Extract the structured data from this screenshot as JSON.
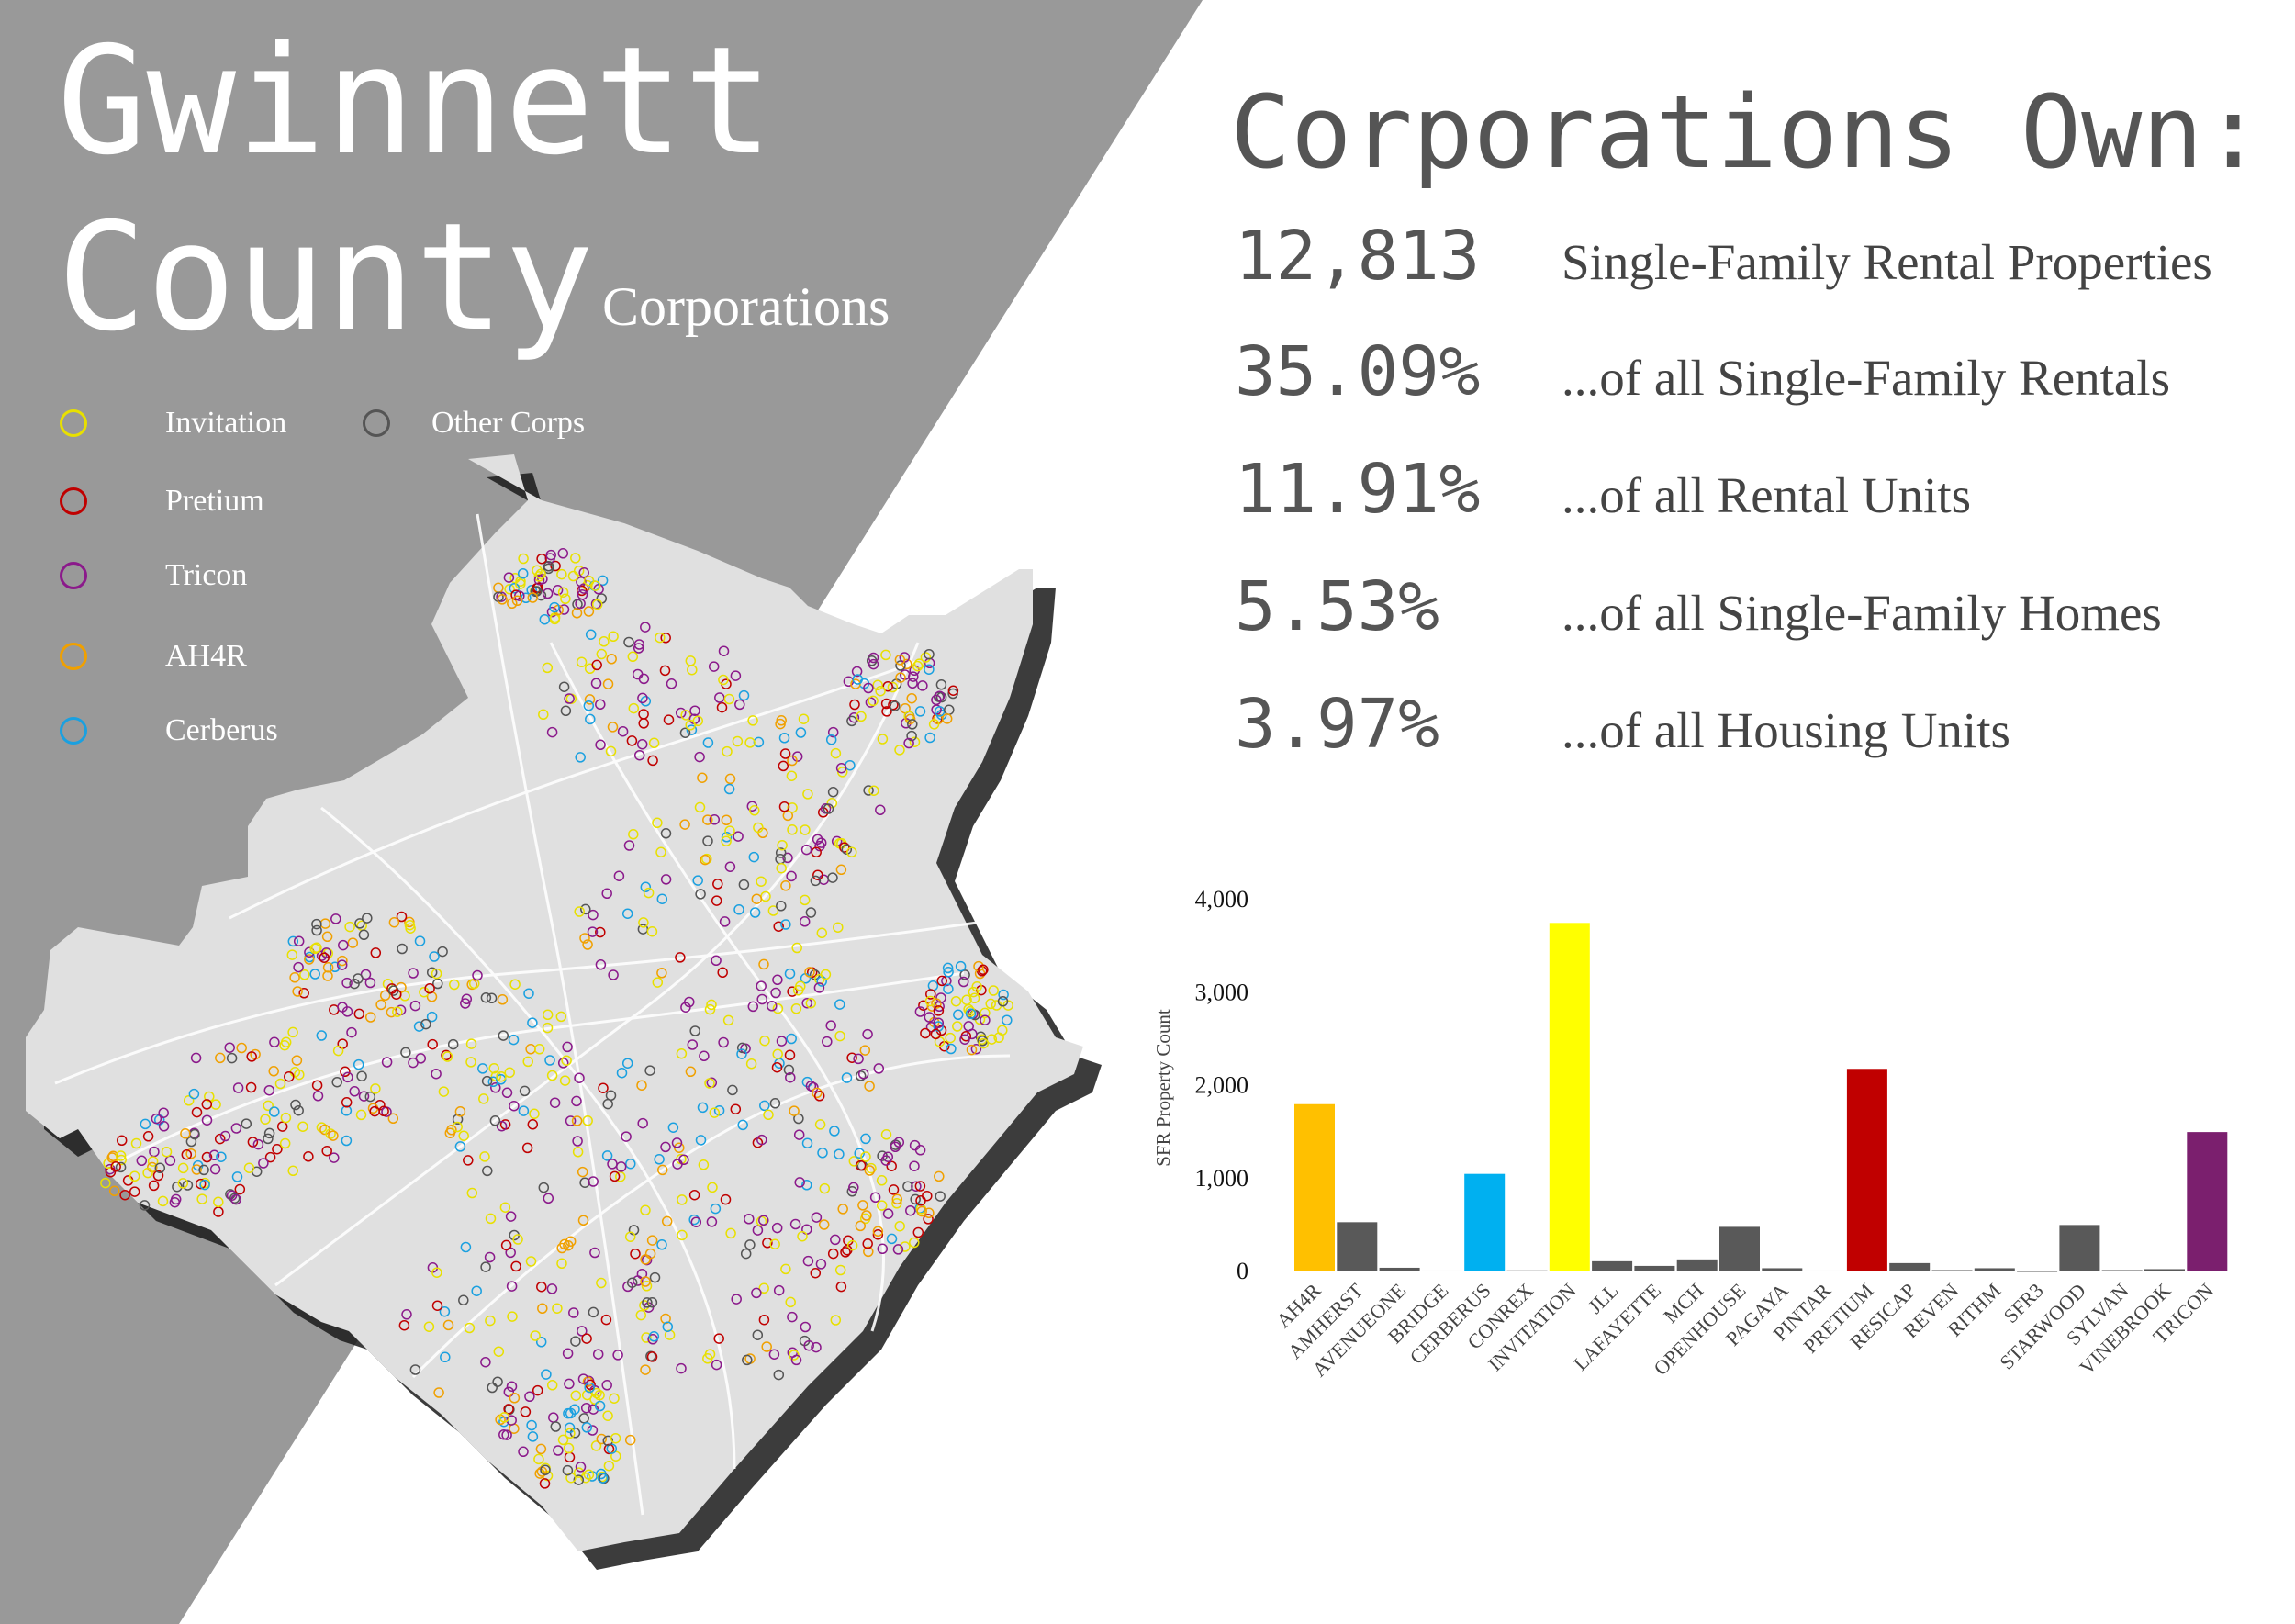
{
  "header": {
    "title_line1": "Gwinnett",
    "title_line2": "County",
    "subtitle": "Corporations"
  },
  "legend": [
    {
      "label": "Invitation",
      "color": "#e8e000"
    },
    {
      "label": "Other Corps",
      "color": "#555555"
    },
    {
      "label": "Pretium",
      "color": "#c00000"
    },
    {
      "label": "Tricon",
      "color": "#8b1a8b"
    },
    {
      "label": "AH4R",
      "color": "#f0a000"
    },
    {
      "label": "Cerberus",
      "color": "#1aa0e0"
    }
  ],
  "stats": {
    "headline": "Corporations Own:",
    "items": [
      {
        "value": "12,813",
        "label": "Single-Family Rental Properties"
      },
      {
        "value": "35.09%",
        "label": "...of all Single-Family Rentals"
      },
      {
        "value": "11.91%",
        "label": "...of all Rental Units"
      },
      {
        "value": "5.53%",
        "label": "...of all Single-Family Homes"
      },
      {
        "value": "3.97%",
        "label": "...of all Housing Units"
      }
    ]
  },
  "colors": {
    "panel": "#999999",
    "map_fill": "#e0e0e0",
    "gray_bar": "#595959"
  },
  "chart_data": {
    "type": "bar",
    "title": "",
    "xlabel": "",
    "ylabel": "SFR Property Count",
    "ylim": [
      0,
      4000
    ],
    "yticks": [
      0,
      1000,
      2000,
      3000,
      4000
    ],
    "ytick_labels": [
      "0",
      "1,000",
      "2,000",
      "3,000",
      "4,000"
    ],
    "grid": false,
    "categories": [
      "AH4R",
      "AMHERST",
      "AVENUEONE",
      "BRIDGE",
      "CERBERUS",
      "CONREX",
      "INVITATION",
      "JLL",
      "LAFAYETTE",
      "MCH",
      "OPENHOUSE",
      "PAGAYA",
      "PINTAR",
      "PRETIUM",
      "RESICAP",
      "REVEN",
      "RITHM",
      "SFR3",
      "STARWOOD",
      "SYLVAN",
      "VINEBROOK",
      "TRICON"
    ],
    "values": [
      1800,
      530,
      40,
      10,
      1050,
      12,
      3750,
      110,
      60,
      130,
      480,
      35,
      10,
      2180,
      90,
      15,
      35,
      5,
      500,
      15,
      25,
      1500
    ],
    "colors": [
      "#ffc000",
      "#595959",
      "#595959",
      "#595959",
      "#00b0f0",
      "#595959",
      "#ffff00",
      "#595959",
      "#595959",
      "#595959",
      "#595959",
      "#595959",
      "#595959",
      "#c00000",
      "#595959",
      "#595959",
      "#595959",
      "#595959",
      "#595959",
      "#595959",
      "#595959",
      "#7b1f6e"
    ]
  }
}
